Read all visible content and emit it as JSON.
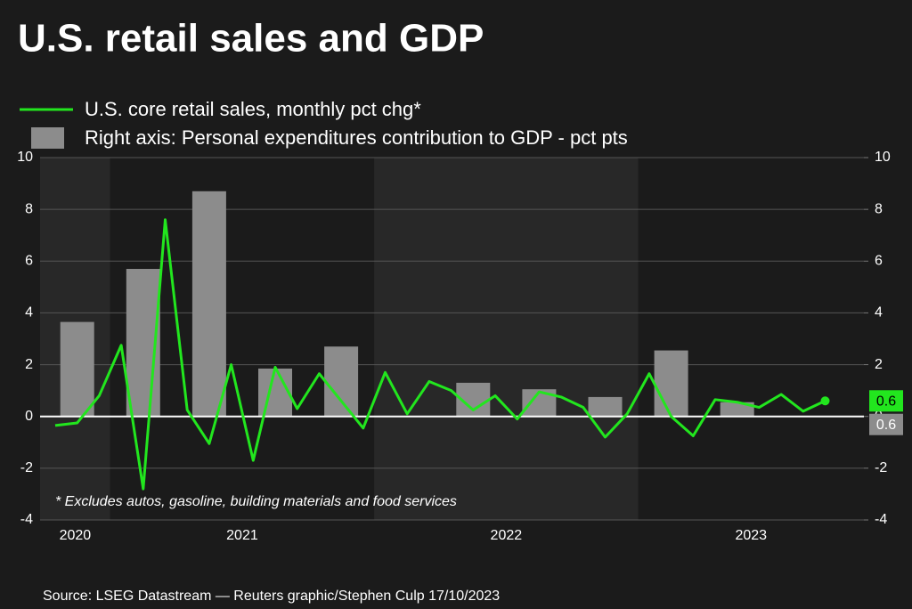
{
  "chart_data": {
    "type": "line_bar",
    "title": "U.S. retail sales and GDP",
    "annotation": "* Excludes autos, gasoline, building materials and food services",
    "source": "Source: LSEG Datastream — Reuters graphic/Stephen Culp 17/10/2023",
    "categories": [
      null,
      null,
      null,
      null,
      null,
      null,
      null,
      null,
      null,
      null,
      null,
      null,
      null,
      null,
      null,
      null,
      null,
      null,
      null,
      null,
      null,
      null,
      null,
      null,
      null,
      null,
      null,
      null,
      null,
      null,
      null,
      null,
      null,
      null,
      null,
      null
    ],
    "x_groups": [
      {
        "label": "2020",
        "count": 3
      },
      {
        "label": "2021",
        "count": 12
      },
      {
        "label": "2022",
        "count": 12
      },
      {
        "label": "2023",
        "count": 9
      }
    ],
    "series": [
      {
        "name": "U.S. core retail sales, monthly pct chg*",
        "type": "line",
        "color": "#22e61e",
        "end_label": "0.6",
        "values": [
          -0.35,
          -0.25,
          0.8,
          2.75,
          -2.8,
          7.6,
          0.25,
          -1.05,
          2.0,
          -1.7,
          1.9,
          0.3,
          1.65,
          0.6,
          -0.45,
          1.7,
          0.1,
          1.35,
          1.0,
          0.25,
          0.8,
          -0.1,
          0.95,
          0.75,
          0.35,
          -0.8,
          0.1,
          1.65,
          0.0,
          -0.75,
          0.65,
          0.55,
          0.35,
          0.85,
          0.2,
          0.6
        ]
      },
      {
        "name": "Right axis: Personal expenditures contribution to GDP - pct pts",
        "type": "bar",
        "axis": "y2",
        "color": "#8c8c8c",
        "end_label": "0.6",
        "values": [
          null,
          3.65,
          null,
          null,
          5.7,
          null,
          null,
          8.7,
          null,
          null,
          1.85,
          null,
          null,
          2.7,
          null,
          null,
          0,
          null,
          null,
          1.3,
          null,
          null,
          1.05,
          null,
          null,
          0.75,
          null,
          null,
          2.55,
          null,
          null,
          0.55,
          null,
          null,
          null,
          null
        ]
      }
    ],
    "ylim": [
      -4,
      10
    ],
    "yticks": [
      -4,
      -2,
      0,
      2,
      4,
      6,
      8,
      10
    ],
    "y2lim": [
      -4,
      10
    ],
    "y2ticks": [
      -4,
      -2,
      0,
      2,
      4,
      6,
      8,
      10
    ],
    "grid": true
  }
}
